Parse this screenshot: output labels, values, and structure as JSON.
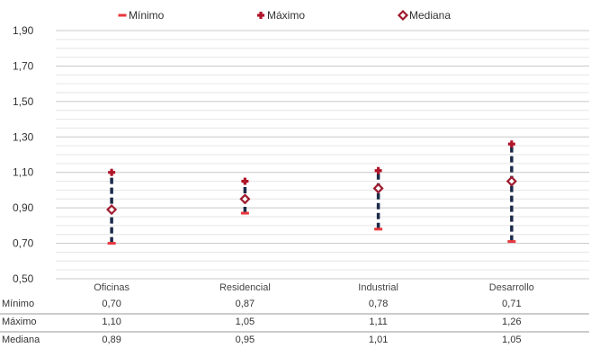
{
  "chart_data": {
    "type": "range",
    "categories": [
      "Oficinas",
      "Residencial",
      "Industrial",
      "Desarrollo"
    ],
    "series": [
      {
        "name": "Mínimo",
        "values": [
          0.7,
          0.87,
          0.78,
          0.71
        ],
        "color": "#e8383d",
        "marker": "dash"
      },
      {
        "name": "Máximo",
        "values": [
          1.1,
          1.05,
          1.11,
          1.26
        ],
        "color": "#b0152a",
        "marker": "plus"
      },
      {
        "name": "Mediana",
        "values": [
          0.89,
          0.95,
          1.01,
          1.05
        ],
        "color": "#9e1b2e",
        "marker": "diamond"
      }
    ],
    "ylim": [
      0.5,
      1.9
    ],
    "yticks": [
      0.5,
      0.7,
      0.9,
      1.1,
      1.3,
      1.5,
      1.7,
      1.9
    ],
    "ytick_labels": [
      "0,50",
      "0,70",
      "0,90",
      "1,10",
      "1,30",
      "1,50",
      "1,70",
      "1,90"
    ],
    "range_line_color": "#1c2b4a",
    "legend_position": "top",
    "grid": true,
    "table": {
      "rows": [
        {
          "label": "Mínimo",
          "cells": [
            "0,70",
            "0,87",
            "0,78",
            "0,71"
          ]
        },
        {
          "label": "Máximo",
          "cells": [
            "1,10",
            "1,05",
            "1,11",
            "1,26"
          ]
        },
        {
          "label": "Mediana",
          "cells": [
            "0,89",
            "0,95",
            "1,01",
            "1,05"
          ]
        }
      ]
    }
  }
}
